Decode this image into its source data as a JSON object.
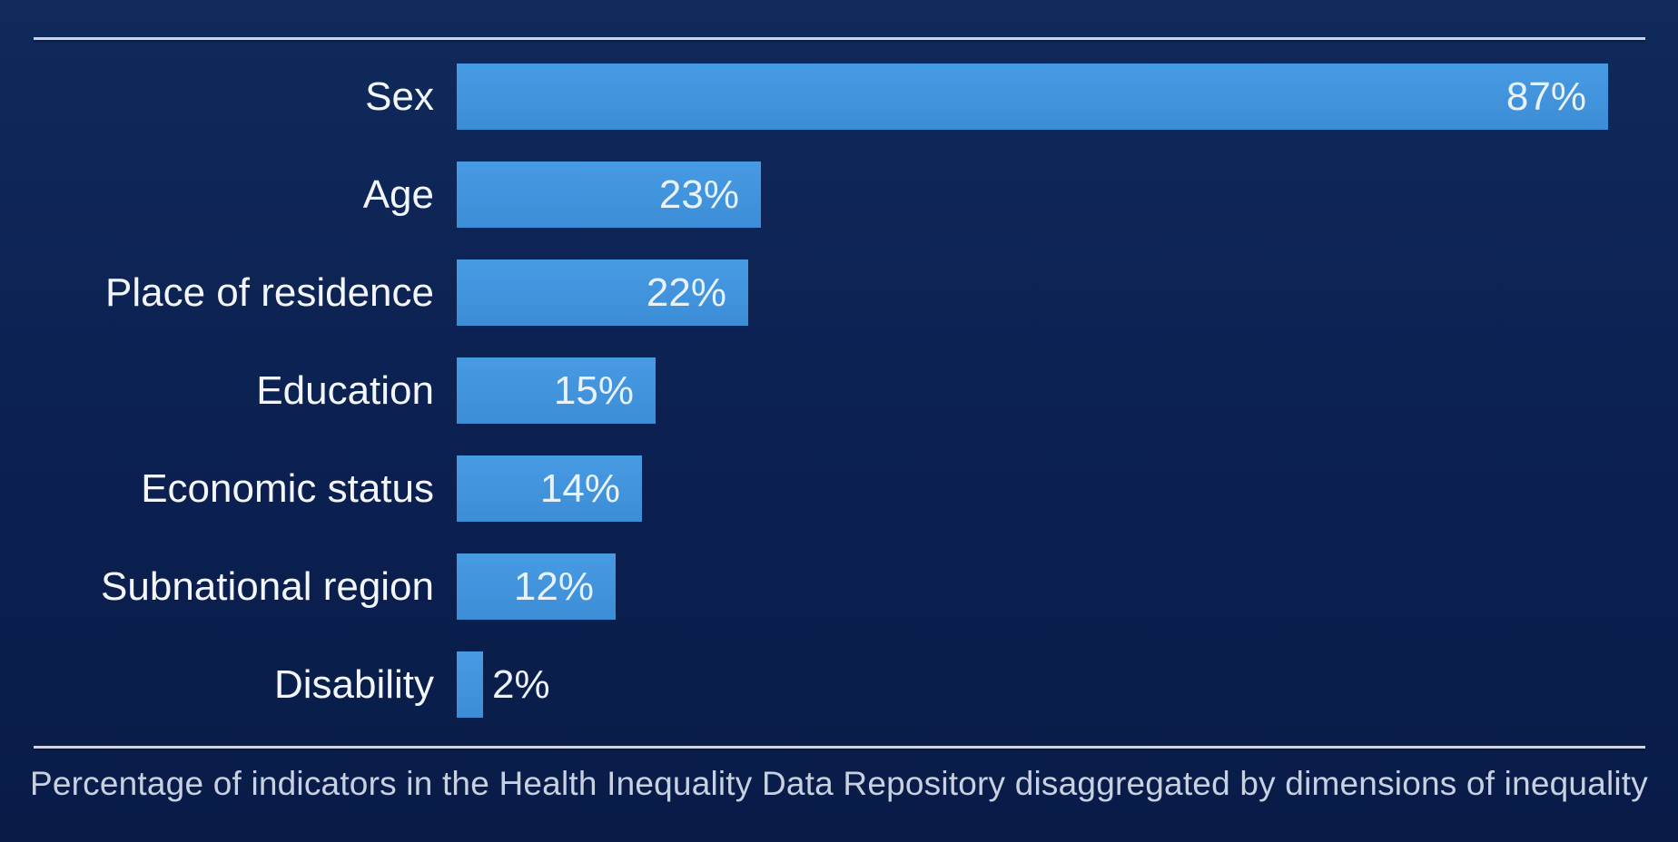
{
  "chart_data": {
    "type": "bar",
    "orientation": "horizontal",
    "title": "",
    "caption": "Percentage of indicators in the Health Inequality Data Repository disaggregated by dimensions of inequality",
    "categories": [
      "Sex",
      "Age",
      "Place of residence",
      "Education",
      "Economic status",
      "Subnational region",
      "Disability"
    ],
    "values": [
      87,
      23,
      22,
      15,
      14,
      12,
      2
    ],
    "value_labels": [
      "87%",
      "23%",
      "22%",
      "15%",
      "14%",
      "12%",
      "2%"
    ],
    "xlim": [
      0,
      100
    ],
    "grid": false,
    "legend": false,
    "colors": {
      "background_top": "#102a5c",
      "background_bottom": "#091c48",
      "bar_fill": "#3f92dc",
      "category_label": "#f3f6fc",
      "value_label": "#e9f1fb",
      "caption_text": "#c8d1e1",
      "rule": "#ccd4e3"
    }
  }
}
